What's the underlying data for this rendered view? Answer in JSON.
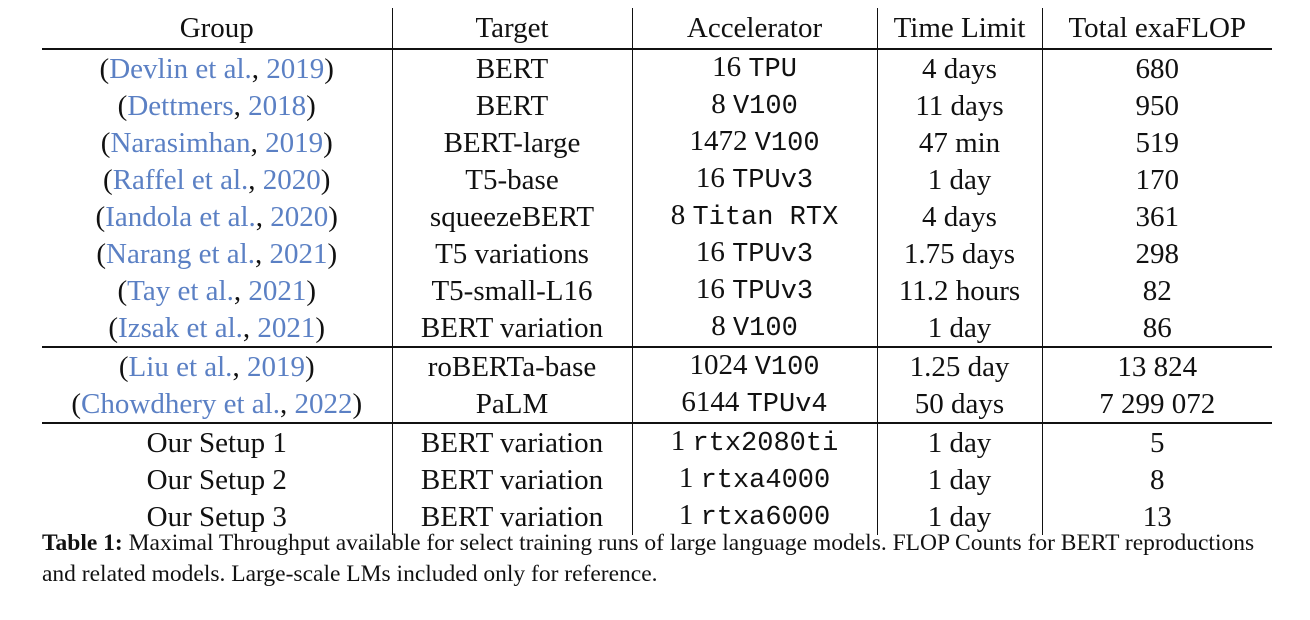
{
  "headers": [
    "Group",
    "Target",
    "Accelerator",
    "Time Limit",
    "Total exaFLOP"
  ],
  "groups": [
    [
      {
        "cite_author": "Devlin et al.",
        "cite_year": "2019",
        "target": "BERT",
        "acc_count": "16",
        "acc_device": "TPU",
        "time": "4 days",
        "flop": "680"
      },
      {
        "cite_author": "Dettmers",
        "cite_year": "2018",
        "target": "BERT",
        "acc_count": "8",
        "acc_device": "V100",
        "time": "11 days",
        "flop": "950"
      },
      {
        "cite_author": "Narasimhan",
        "cite_year": "2019",
        "target": "BERT-large",
        "acc_count": "1472",
        "acc_device": "V100",
        "time": "47 min",
        "flop": "519"
      },
      {
        "cite_author": "Raffel et al.",
        "cite_year": "2020",
        "target": "T5-base",
        "acc_count": "16",
        "acc_device": "TPUv3",
        "time": "1 day",
        "flop": "170"
      },
      {
        "cite_author": "Iandola et al.",
        "cite_year": "2020",
        "target": "squeezeBERT",
        "acc_count": "8",
        "acc_device": "Titan RTX",
        "time": "4 days",
        "flop": "361"
      },
      {
        "cite_author": "Narang et al.",
        "cite_year": "2021",
        "target": "T5 variations",
        "acc_count": "16",
        "acc_device": "TPUv3",
        "time": "1.75 days",
        "flop": "298"
      },
      {
        "cite_author": "Tay et al.",
        "cite_year": "2021",
        "target": "T5-small-L16",
        "acc_count": "16",
        "acc_device": "TPUv3",
        "time": "11.2 hours",
        "flop": "82"
      },
      {
        "cite_author": "Izsak et al.",
        "cite_year": "2021",
        "target": "BERT variation",
        "acc_count": "8",
        "acc_device": "V100",
        "time": "1 day",
        "flop": "86"
      }
    ],
    [
      {
        "cite_author": "Liu et al.",
        "cite_year": "2019",
        "target": "roBERTa-base",
        "acc_count": "1024",
        "acc_device": "V100",
        "time": "1.25 day",
        "flop": "13 824"
      },
      {
        "cite_author": "Chowdhery et al.",
        "cite_year": "2022",
        "target": "PaLM",
        "acc_count": "6144",
        "acc_device": "TPUv4",
        "time": "50 days",
        "flop": "7 299 072"
      }
    ],
    [
      {
        "group": "Our Setup 1",
        "target": "BERT variation",
        "acc_count": "1",
        "acc_device": "rtx2080ti",
        "time": "1 day",
        "flop": "5"
      },
      {
        "group": "Our Setup 2",
        "target": "BERT variation",
        "acc_count": "1",
        "acc_device": "rtxa4000",
        "time": "1 day",
        "flop": "8"
      },
      {
        "group": "Our Setup 3",
        "target": "BERT variation",
        "acc_count": "1",
        "acc_device": "rtxa6000",
        "time": "1 day",
        "flop": "13"
      }
    ]
  ],
  "caption": {
    "label": "Table 1:",
    "text": " Maximal Throughput available for select training runs of large language models. FLOP Counts for BERT reproductions and related models. Large-scale LMs included only for reference."
  }
}
